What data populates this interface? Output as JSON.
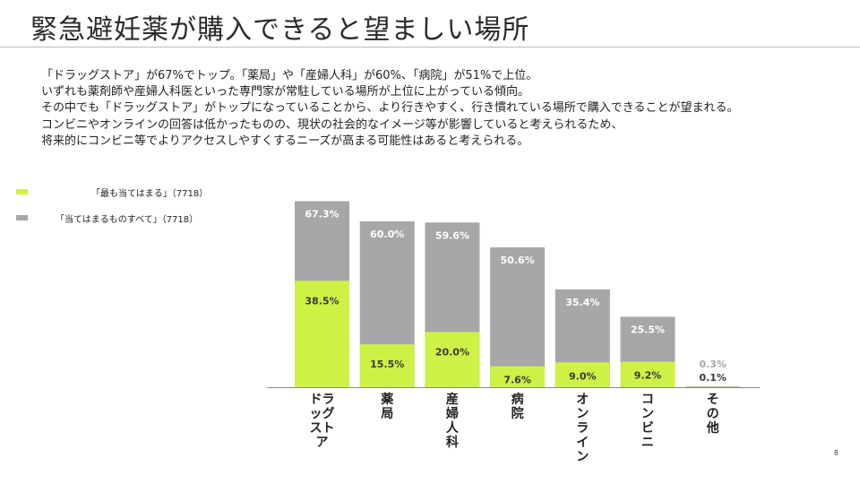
{
  "title": "緊急避妊薬が購入できると望ましい場所",
  "description": [
    "「ドラッグストア」が67%でトップ。「薬局」や「産婦人科」が60%、「病院」が51%で上位。",
    "いずれも薬剤師や産婦人科医といった専門家が常駐している場所が上位に上がっている傾向。",
    "その中でも「ドラッグストア」がトップになっていることから、より行きやすく、行き慣れている場所で購入できることが望まれる。",
    "コンビニやオンラインの回答は低かったものの、現状の社会的なイメージ等が影響していると考えられるため、",
    "将来的にコンビニ等でよりアクセスしやすくするニーズが高まる可能性はあると考えられる。"
  ],
  "legend": {
    "top": "「最も当てはまる」（7718）",
    "total": "「当てはまるものすべて」（7718）"
  },
  "page_number": "8",
  "colors": {
    "top": "#cdf245",
    "total": "#a7a6a9",
    "axis": "#888888"
  },
  "chart_data": {
    "type": "bar",
    "categories": [
      "ドラッグストア",
      "薬局",
      "産婦人科",
      "病院",
      "オンライン",
      "コンビニ",
      "その他"
    ],
    "category_label_lines": [
      [
        "ドラ",
        "ッグ",
        "スト",
        "ア"
      ],
      [
        "薬",
        "局"
      ],
      [
        "産",
        "婦",
        "人",
        "科"
      ],
      [
        "病",
        "院"
      ],
      [
        "オ",
        "ン",
        "ラ",
        "イ",
        "ン"
      ],
      [
        "コ",
        "ン",
        "ビ",
        "ニ"
      ],
      [
        "そ",
        "の",
        "他"
      ]
    ],
    "series": [
      {
        "name": "「当てはまるものすべて」（7718）",
        "values": [
          67.3,
          60.0,
          59.6,
          50.6,
          35.4,
          25.5,
          0.3
        ],
        "labels": [
          "67.3%",
          "60.0%",
          "59.6%",
          "50.6%",
          "35.4%",
          "25.5%",
          "0.3%"
        ]
      },
      {
        "name": "「最も当てはまる」（7718）",
        "values": [
          38.5,
          15.5,
          20.0,
          7.6,
          9.0,
          9.2,
          0.1
        ],
        "labels": [
          "38.5%",
          "15.5%",
          "20.0%",
          "7.6%",
          "9.0%",
          "9.2%",
          "0.1%"
        ]
      }
    ],
    "ylim": [
      0,
      70
    ],
    "unit": "%"
  }
}
